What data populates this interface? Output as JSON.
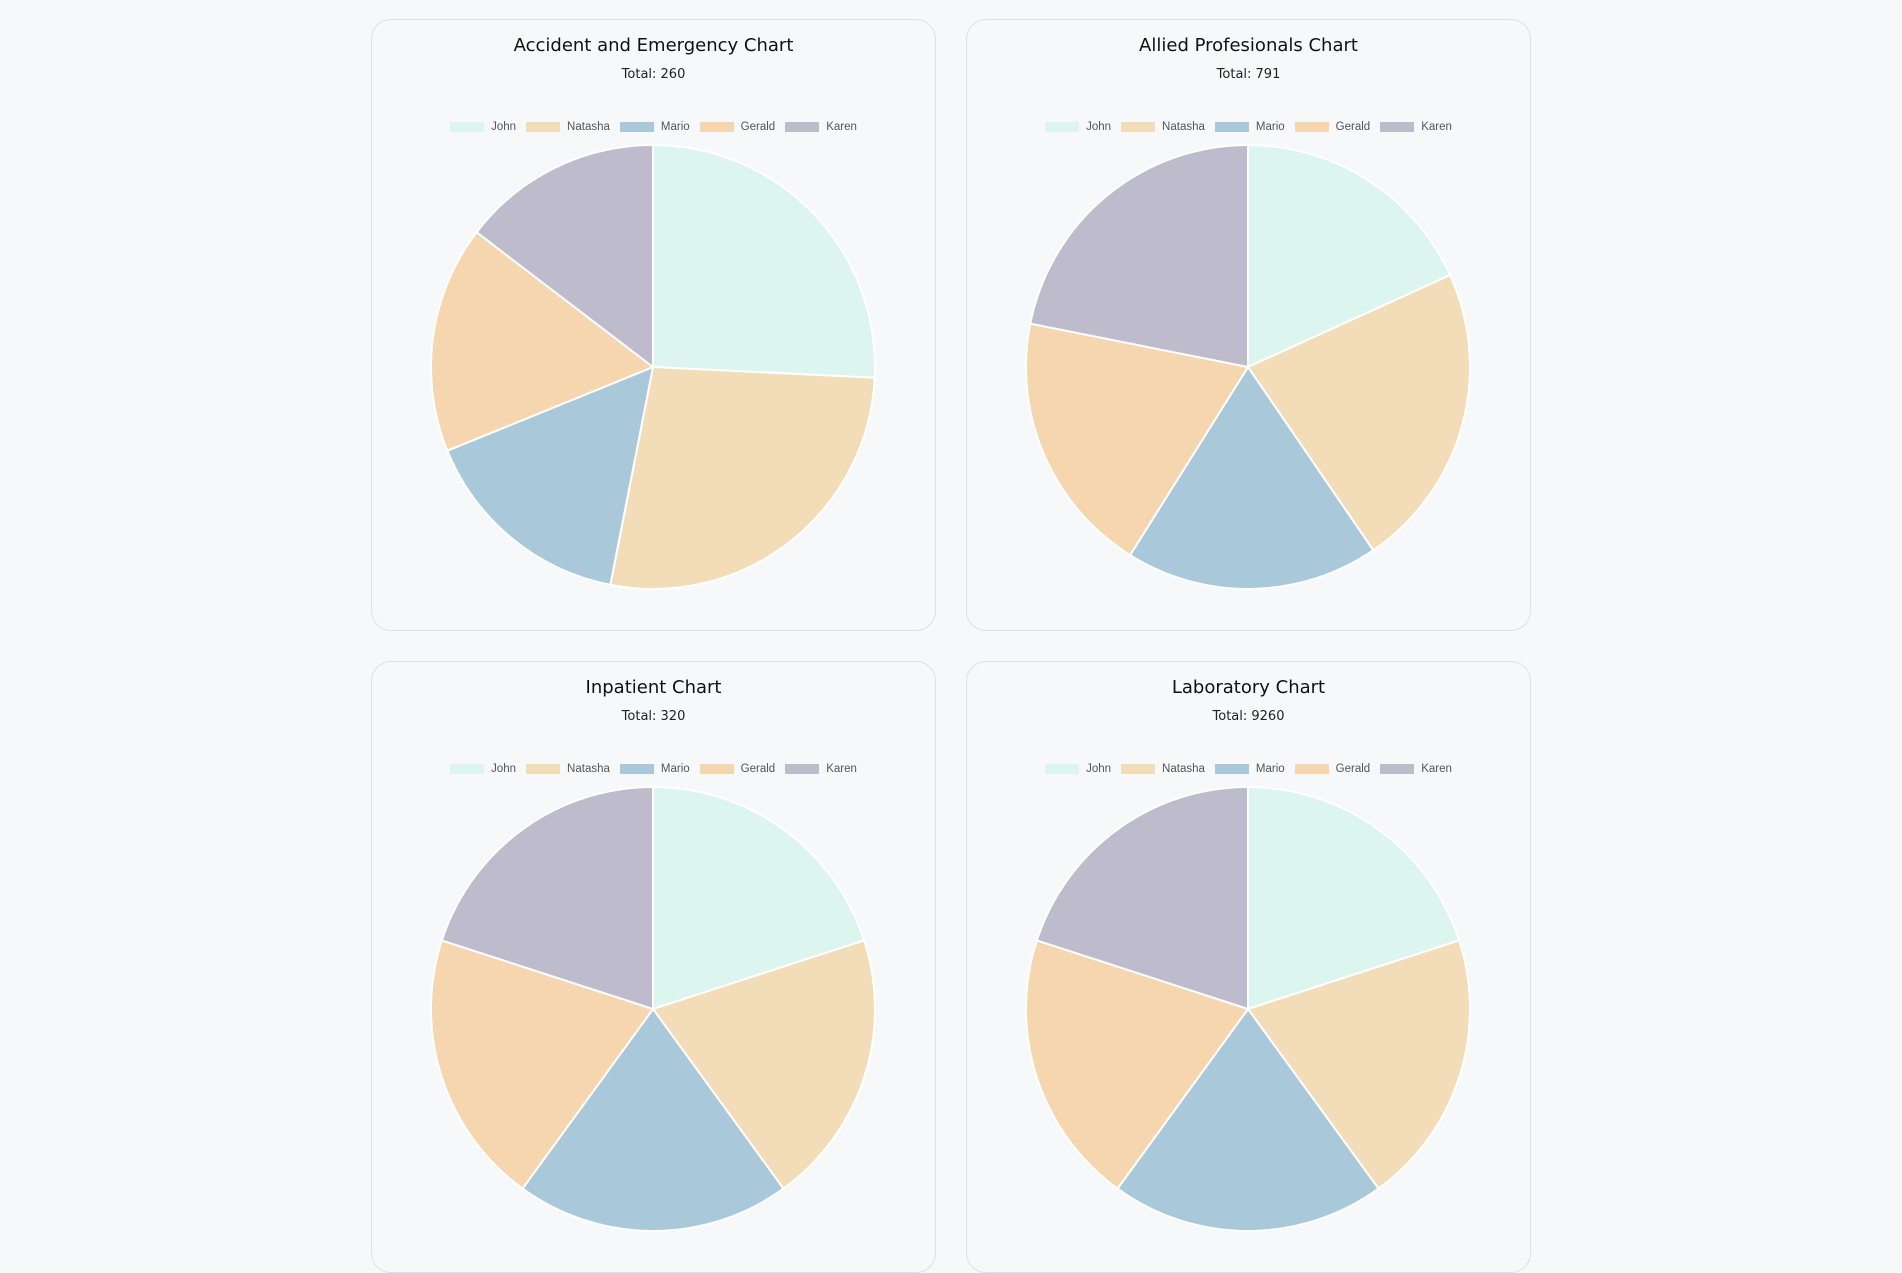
{
  "legend_labels": [
    "John",
    "Natasha",
    "Mario",
    "Gerald",
    "Karen"
  ],
  "colors": [
    "#dcf5ef",
    "#f3dcb8",
    "#a9c9da",
    "#f6d6ae",
    "#bdbbcc"
  ],
  "charts": [
    {
      "title": "Accident and Emergency Chart",
      "total": "Total: 260"
    },
    {
      "title": "Allied Profesionals Chart",
      "total": "Total: 791"
    },
    {
      "title": "Inpatient Chart",
      "total": "Total: 320"
    },
    {
      "title": "Laboratory Chart",
      "total": "Total: 9260"
    }
  ],
  "chart_data": [
    {
      "type": "pie",
      "title": "Accident and Emergency Chart",
      "subtitle": "Total: 260",
      "legend_position": "top",
      "categories": [
        "John",
        "Natasha",
        "Mario",
        "Gerald",
        "Karen"
      ],
      "values": [
        67,
        71,
        41,
        43,
        38
      ]
    },
    {
      "type": "pie",
      "title": "Allied Profesionals Chart",
      "subtitle": "Total: 791",
      "legend_position": "top",
      "categories": [
        "John",
        "Natasha",
        "Mario",
        "Gerald",
        "Karen"
      ],
      "values": [
        144,
        176,
        146,
        152,
        173
      ]
    },
    {
      "type": "pie",
      "title": "Inpatient Chart",
      "subtitle": "Total: 320",
      "legend_position": "top",
      "categories": [
        "John",
        "Natasha",
        "Mario",
        "Gerald",
        "Karen"
      ],
      "values": [
        64,
        64,
        64,
        64,
        64
      ]
    },
    {
      "type": "pie",
      "title": "Laboratory Chart",
      "subtitle": "Total: 9260",
      "legend_position": "top",
      "categories": [
        "John",
        "Natasha",
        "Mario",
        "Gerald",
        "Karen"
      ],
      "values": [
        1852,
        1852,
        1852,
        1852,
        1852
      ]
    }
  ]
}
